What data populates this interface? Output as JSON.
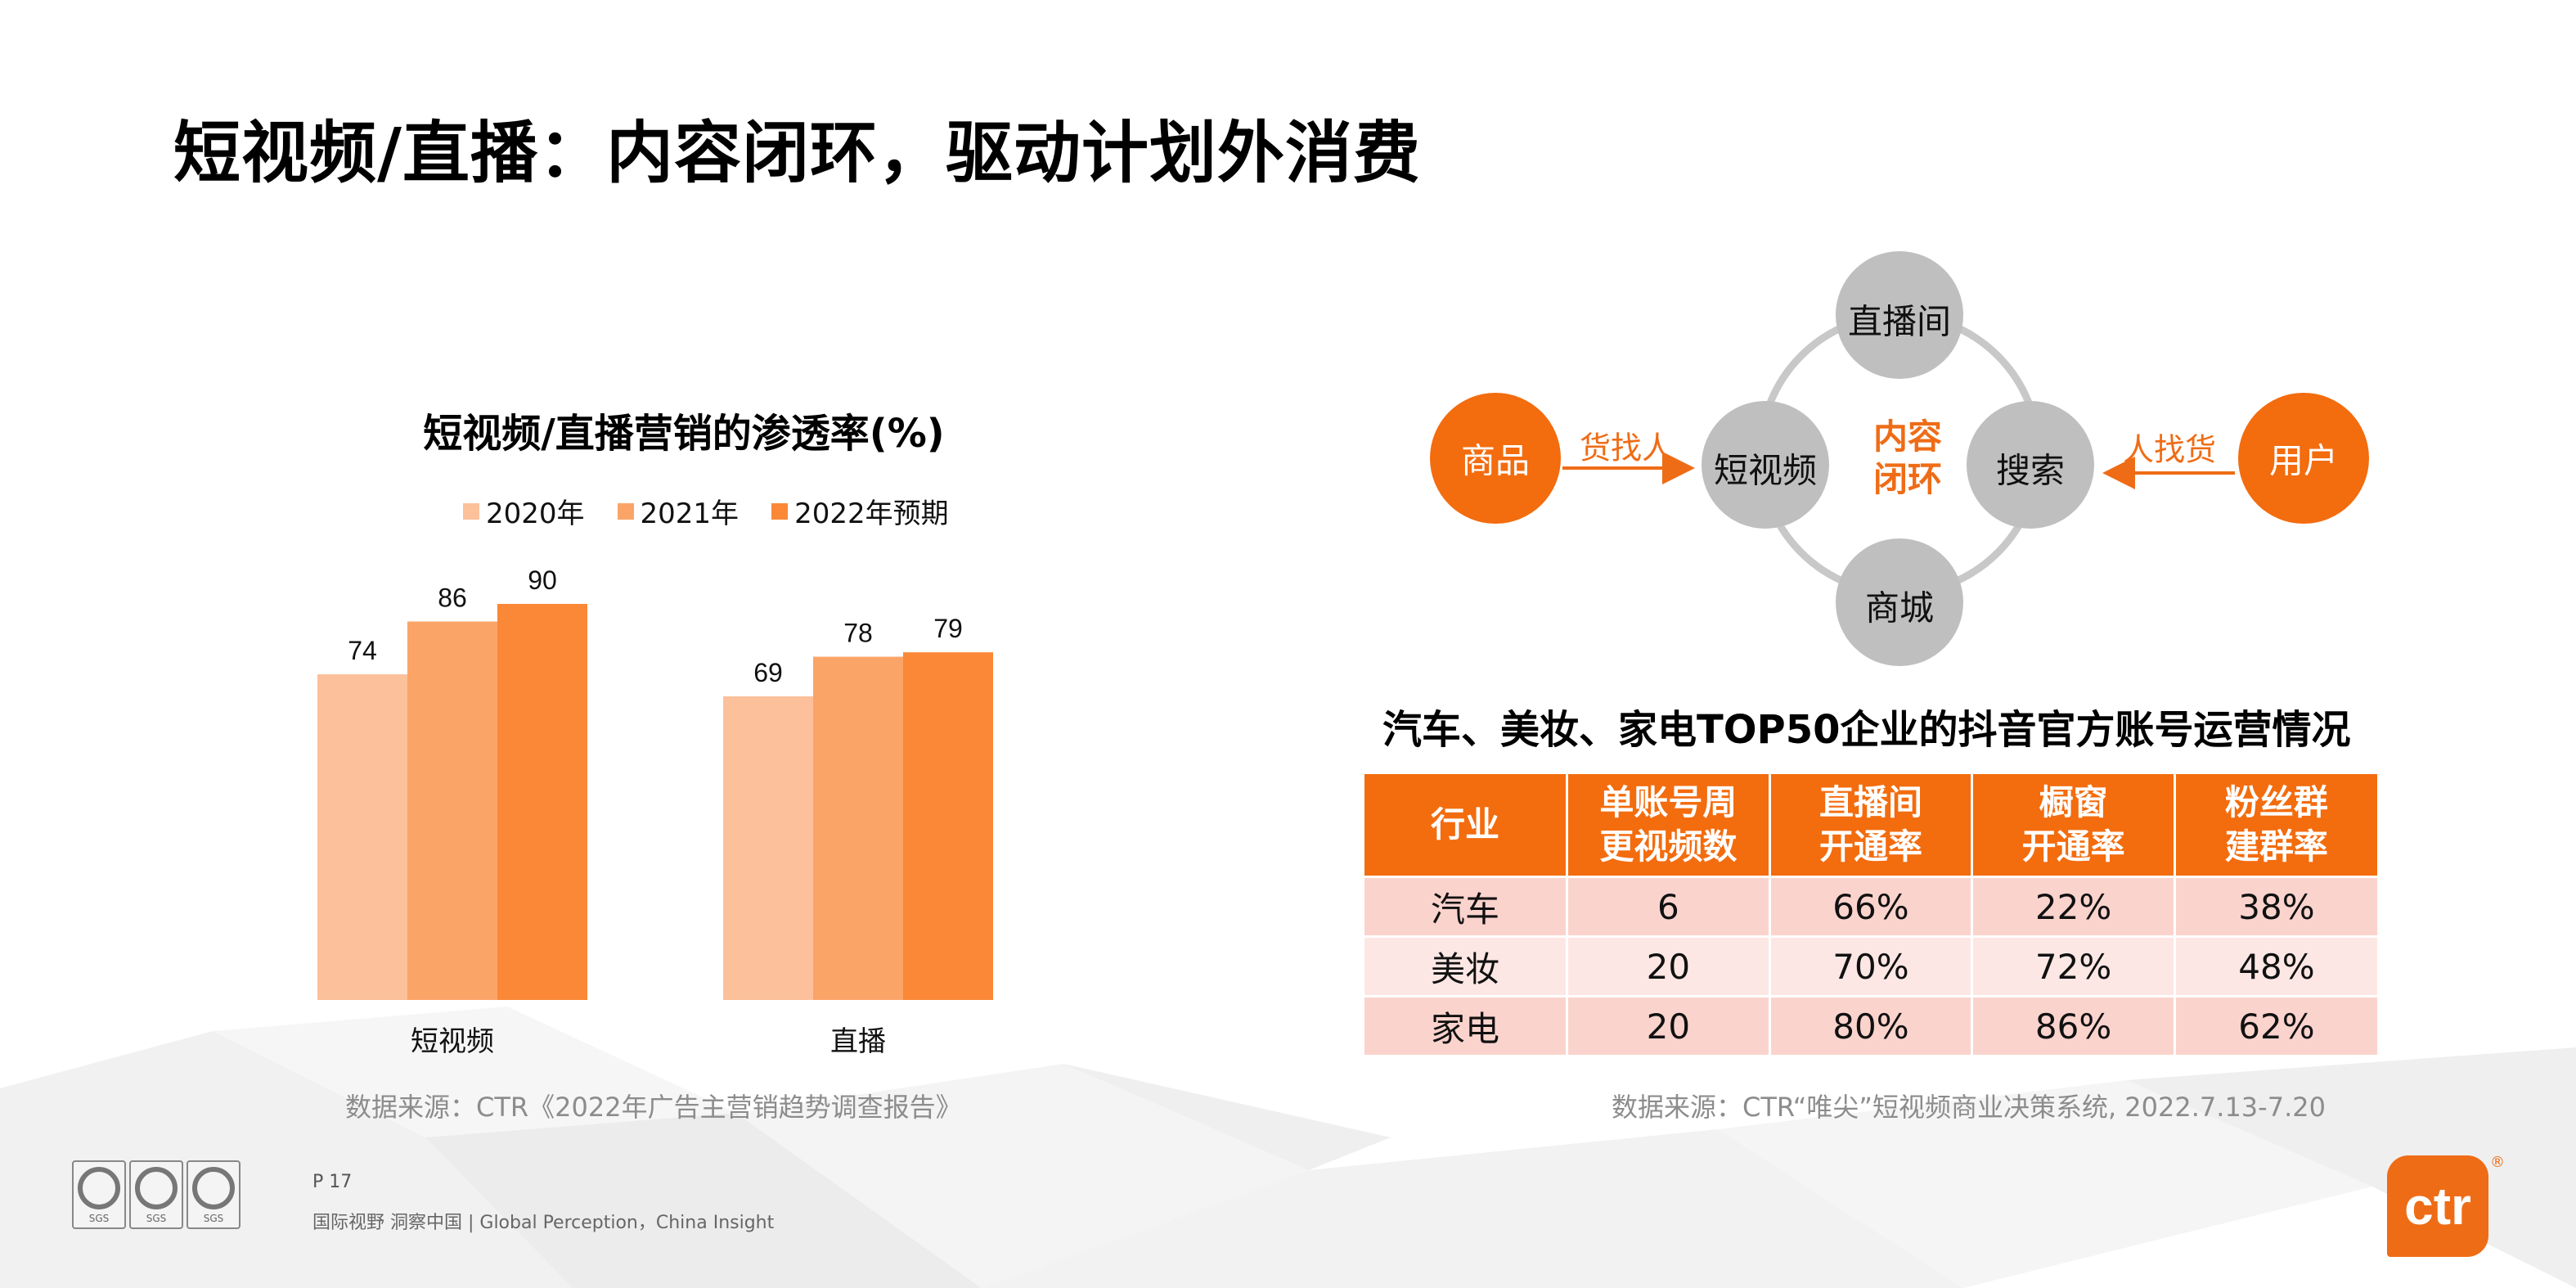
{
  "page": {
    "title": "短视频/直播：内容闭环，驱动计划外消费",
    "page_number": "P 17",
    "tagline": "国际视野  洞察中国 |  Global Perception，China Insight",
    "brand": "ctr",
    "brand_reg": "®",
    "certification_label": "SGS",
    "accent_color": "#ef6c16"
  },
  "chart_data": {
    "type": "bar",
    "title": "短视频/直播营销的渗透率(%)",
    "categories": [
      "短视频",
      "直播"
    ],
    "series": [
      {
        "name": "2020年",
        "values": [
          74,
          69
        ],
        "color": "#fcc09a"
      },
      {
        "name": "2021年",
        "values": [
          86,
          78
        ],
        "color": "#fba468"
      },
      {
        "name": "2022年预期",
        "values": [
          90,
          79
        ],
        "color": "#fa8836"
      }
    ],
    "ylim": [
      0,
      100
    ],
    "grid": false,
    "legend_position": "top",
    "source": "数据来源：CTR《2022年广告主营销趋势调查报告》"
  },
  "diagram": {
    "nodes": {
      "live_room": "直播间",
      "short_video": "短视频",
      "search": "搜索",
      "mall": "商城",
      "goods": "商品",
      "user": "用户"
    },
    "center": [
      "内容",
      "闭环"
    ],
    "left_arrow_label": "货找人",
    "right_arrow_label": "人找货"
  },
  "table": {
    "title": "汽车、美妆、家电TOP50企业的抖音官方账号运营情况",
    "headers": [
      [
        "行业"
      ],
      [
        "单账号周",
        "更视频数"
      ],
      [
        "直播间",
        "开通率"
      ],
      [
        "橱窗",
        "开通率"
      ],
      [
        "粉丝群",
        "建群率"
      ]
    ],
    "rows": [
      [
        "汽车",
        "6",
        "66%",
        "22%",
        "38%"
      ],
      [
        "美妆",
        "20",
        "70%",
        "72%",
        "48%"
      ],
      [
        "家电",
        "20",
        "80%",
        "86%",
        "62%"
      ]
    ],
    "source": "数据来源：CTR“唯尖”短视频商业决策系统, 2022.7.13-7.20"
  }
}
